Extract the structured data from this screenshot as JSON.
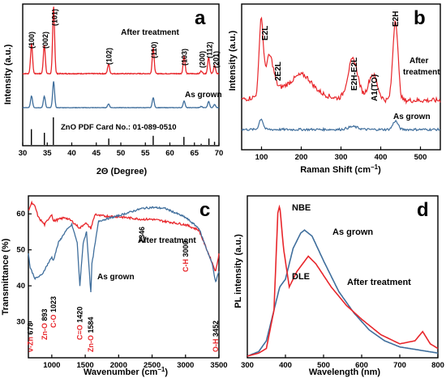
{
  "colors": {
    "after": "#e8262b",
    "grown": "#3f6e9c",
    "pdf": "#000000",
    "vzn_label": "#e8262b"
  },
  "chart_data": [
    {
      "panel": "a",
      "type": "line",
      "xlabel": "2Θ (Degree)",
      "ylabel": "Intensity (a.u.)",
      "xlim": [
        30,
        70
      ],
      "xticks": [
        "30",
        "35",
        "40",
        "45",
        "50",
        "55",
        "60",
        "65",
        "70"
      ],
      "series": [
        {
          "name": "After treatment",
          "peaks": [
            [
              31.8,
              0.45
            ],
            [
              34.4,
              0.43
            ],
            [
              36.3,
              1.0
            ],
            [
              47.5,
              0.14
            ],
            [
              56.6,
              0.38
            ],
            [
              62.9,
              0.26
            ],
            [
              66.4,
              0.04
            ],
            [
              67.9,
              0.24
            ],
            [
              69.1,
              0.12
            ]
          ]
        },
        {
          "name": "As grown",
          "peaks": [
            [
              31.8,
              0.38
            ],
            [
              34.4,
              0.37
            ],
            [
              36.3,
              0.85
            ],
            [
              47.5,
              0.12
            ],
            [
              56.6,
              0.32
            ],
            [
              62.9,
              0.22
            ],
            [
              66.4,
              0.04
            ],
            [
              67.9,
              0.2
            ],
            [
              69.1,
              0.1
            ]
          ]
        },
        {
          "name": "ZnO PDF Card No.: 01-089-0510",
          "type": "stick",
          "peaks": [
            [
              31.77,
              0.57
            ],
            [
              34.42,
              0.44
            ],
            [
              36.25,
              1.0
            ],
            [
              47.54,
              0.23
            ],
            [
              56.6,
              0.33
            ],
            [
              62.86,
              0.29
            ],
            [
              66.38,
              0.04
            ],
            [
              67.96,
              0.23
            ],
            [
              69.1,
              0.11
            ]
          ]
        }
      ],
      "annotations": [
        "(100)",
        "(002)",
        "(101)",
        "(102)",
        "(110)",
        "(103)",
        "(200)",
        "(112)",
        "(201)"
      ]
    },
    {
      "panel": "b",
      "type": "line",
      "xlabel": "Raman Shift (cm−1)",
      "ylabel": "Intensity (a.u.)",
      "xlim": [
        50,
        550
      ],
      "xticks": [
        "100",
        "200",
        "300",
        "400",
        "500"
      ],
      "series": [
        {
          "name": "After treatment",
          "peaks": [
            [
              99,
              0.92
            ],
            [
              120,
              0.45
            ],
            [
              204,
              0.15
            ],
            [
              330,
              0.5
            ],
            [
              380,
              0.32
            ],
            [
              437,
              1.0
            ]
          ]
        },
        {
          "name": "As grown",
          "peaks": [
            [
              99,
              0.38
            ],
            [
              330,
              0.1
            ],
            [
              437,
              0.3
            ]
          ]
        }
      ],
      "annotations": [
        "E2L",
        "2E2L",
        "E2H-E2L",
        "A1(TO)",
        "E2H"
      ]
    },
    {
      "panel": "c",
      "type": "line",
      "xlabel": "Wavenumber (cm−1)",
      "ylabel": "Transmittance (%)",
      "xlim": [
        650,
        3500
      ],
      "ylim": [
        20,
        65
      ],
      "xticks": [
        "1000",
        "1500",
        "2000",
        "2500",
        "3000",
        "3500"
      ],
      "yticks": [
        "30",
        "40",
        "50",
        "60"
      ],
      "series": [
        {
          "name": "After treatment",
          "points": [
            [
              650,
              61
            ],
            [
              700,
              63
            ],
            [
              750,
              62
            ],
            [
              800,
              59
            ],
            [
              893,
              57
            ],
            [
              1000,
              60
            ],
            [
              1023,
              58
            ],
            [
              1200,
              59
            ],
            [
              1300,
              58
            ],
            [
              1420,
              56
            ],
            [
              1500,
              57.5
            ],
            [
              1584,
              56
            ],
            [
              1650,
              60
            ],
            [
              1700,
              59.5
            ],
            [
              2000,
              59.2
            ],
            [
              2346,
              58.5
            ],
            [
              2500,
              58.5
            ],
            [
              3000,
              57
            ],
            [
              3200,
              55.5
            ],
            [
              3452,
              44
            ],
            [
              3500,
              49
            ]
          ]
        },
        {
          "name": "As grown",
          "points": [
            [
              650,
              49
            ],
            [
              678,
              45
            ],
            [
              750,
              42
            ],
            [
              850,
              43
            ],
            [
              893,
              44.5
            ],
            [
              1000,
              48
            ],
            [
              1023,
              47
            ],
            [
              1100,
              52
            ],
            [
              1200,
              55
            ],
            [
              1300,
              57
            ],
            [
              1380,
              52
            ],
            [
              1420,
              40
            ],
            [
              1470,
              52
            ],
            [
              1520,
              55
            ],
            [
              1584,
              38
            ],
            [
              1600,
              46
            ],
            [
              1700,
              58
            ],
            [
              2000,
              59.5
            ],
            [
              2346,
              61.5
            ],
            [
              2500,
              61.8
            ],
            [
              2700,
              61.5
            ],
            [
              3000,
              59
            ],
            [
              3200,
              56
            ],
            [
              3400,
              46
            ],
            [
              3452,
              41
            ],
            [
              3500,
              44
            ]
          ]
        }
      ],
      "annotations": [
        {
          "text": "v-Zn",
          "value": "678",
          "color": "red"
        },
        {
          "text": "Zn-O",
          "value": "893",
          "color": "red"
        },
        {
          "text": "C-O",
          "value": "1023",
          "color": "red"
        },
        {
          "text": "C=O",
          "value": "1420",
          "color": "red"
        },
        {
          "text": "Zn-O",
          "value": "1584",
          "color": "red"
        },
        {
          "text": "",
          "value": "2346",
          "color": "black"
        },
        {
          "text": "C-H",
          "value": "3000",
          "color": "red"
        },
        {
          "text": "O-H",
          "value": "3452",
          "color": "red"
        }
      ]
    },
    {
      "panel": "d",
      "type": "line",
      "xlabel": "Wavelength (nm)",
      "ylabel": "PL intensity (a.u.)",
      "xlim": [
        300,
        800
      ],
      "xticks": [
        "300",
        "400",
        "500",
        "600",
        "700",
        "800"
      ],
      "series": [
        {
          "name": "After treatment",
          "points": [
            [
              300,
              0
            ],
            [
              330,
              0.02
            ],
            [
              350,
              0.05
            ],
            [
              370,
              0.3
            ],
            [
              380,
              0.93
            ],
            [
              385,
              0.98
            ],
            [
              395,
              0.7
            ],
            [
              410,
              0.45
            ],
            [
              430,
              0.55
            ],
            [
              460,
              0.65
            ],
            [
              480,
              0.6
            ],
            [
              520,
              0.45
            ],
            [
              560,
              0.33
            ],
            [
              600,
              0.24
            ],
            [
              650,
              0.14
            ],
            [
              700,
              0.08
            ],
            [
              740,
              0.1
            ],
            [
              760,
              0.16
            ],
            [
              780,
              0.08
            ],
            [
              800,
              0.05
            ]
          ]
        },
        {
          "name": "As grown",
          "points": [
            [
              300,
              0
            ],
            [
              330,
              0.03
            ],
            [
              350,
              0.1
            ],
            [
              370,
              0.3
            ],
            [
              385,
              0.45
            ],
            [
              400,
              0.5
            ],
            [
              420,
              0.7
            ],
            [
              440,
              0.8
            ],
            [
              450,
              0.82
            ],
            [
              470,
              0.78
            ],
            [
              500,
              0.62
            ],
            [
              540,
              0.42
            ],
            [
              580,
              0.28
            ],
            [
              620,
              0.17
            ],
            [
              660,
              0.1
            ],
            [
              700,
              0.06
            ],
            [
              750,
              0.04
            ],
            [
              800,
              0.02
            ]
          ]
        }
      ],
      "annotations": [
        "NBE",
        "DLE"
      ]
    }
  ],
  "labels": {
    "a": {
      "letter": "a",
      "ylabel": "Intensity (a.u.)",
      "xlabel": "2Θ (Degree)",
      "after": "After treatment",
      "grown": "As grown",
      "pdf": "ZnO PDF Card No.: 01-089-0510",
      "hkl": [
        "(100)",
        "(002)",
        "(101)",
        "(102)",
        "(110)",
        "(103)",
        "(200)",
        "(112)",
        "(201)"
      ]
    },
    "b": {
      "letter": "b",
      "ylabel": "Intensity (a.u.)",
      "xlabel_main": "Raman Shift (cm",
      "xlabel_sup": "−1",
      "xlabel_end": ")",
      "after1": "After",
      "after2": "treatment",
      "grown": "As grown",
      "modes": {
        "e2l": "E2L",
        "two_e2l": "2E2L",
        "e2h_e2l": "E2H-E2L",
        "a1": "A1(TO)",
        "e2h": "E2H"
      }
    },
    "c": {
      "letter": "c",
      "ylabel": "Transmittance (%)",
      "xlabel_main": "Wavenumber (cm",
      "xlabel_sup": "−1",
      "xlabel_end": ")",
      "after": "After treatment",
      "grown": "As grown"
    },
    "d": {
      "letter": "d",
      "ylabel": "PL intensity (a.u.)",
      "xlabel": "Wavelength (nm)",
      "nbe": "NBE",
      "dle": "DLE",
      "grown": "As grown",
      "after": "After treatment"
    }
  }
}
